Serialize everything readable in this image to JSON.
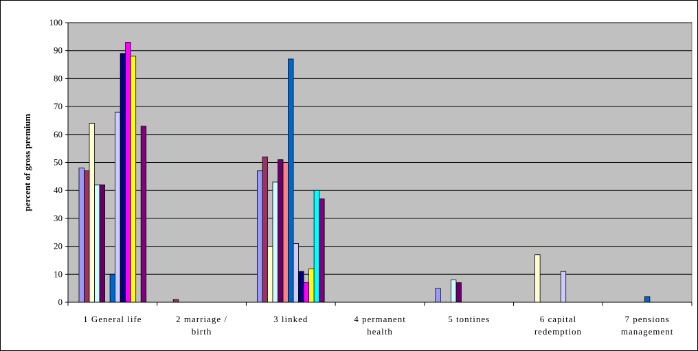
{
  "chart_data": {
    "type": "bar",
    "title": "",
    "xlabel": "",
    "ylabel": "percent of gross premium",
    "ylim": [
      0,
      100
    ],
    "yticks": [
      0,
      10,
      20,
      30,
      40,
      50,
      60,
      70,
      80,
      90,
      100
    ],
    "grid": true,
    "legend": "none",
    "plot_background": "#c0c0c0",
    "categories": [
      [
        "1 General life"
      ],
      [
        "2 marriage /",
        "birth"
      ],
      [
        "3 linked"
      ],
      [
        "4 permanent",
        "health"
      ],
      [
        "5 tontines"
      ],
      [
        "6 capital",
        "redemption"
      ],
      [
        "7 pensions",
        "management"
      ]
    ],
    "series": [
      {
        "color": "#9999ff",
        "values": [
          48,
          0,
          47,
          0,
          5,
          0,
          0
        ]
      },
      {
        "color": "#993366",
        "values": [
          47,
          1,
          52,
          0,
          0,
          0,
          0
        ]
      },
      {
        "color": "#ffffcc",
        "values": [
          64,
          0,
          20,
          0,
          0,
          17,
          0
        ]
      },
      {
        "color": "#ccffff",
        "values": [
          42,
          0,
          43,
          0,
          8,
          0,
          0
        ]
      },
      {
        "color": "#660066",
        "values": [
          42,
          0,
          51,
          0,
          7,
          0,
          0
        ]
      },
      {
        "color": "#ff8080",
        "values": [
          0,
          0,
          50,
          0,
          0,
          0,
          0
        ]
      },
      {
        "color": "#0066cc",
        "values": [
          10,
          0,
          87,
          0,
          0,
          0,
          2
        ]
      },
      {
        "color": "#ccccff",
        "values": [
          68,
          0,
          21,
          0,
          0,
          11,
          0
        ]
      },
      {
        "color": "#000080",
        "values": [
          89,
          0,
          11,
          0,
          0,
          0,
          0
        ]
      },
      {
        "color": "#ff00ff",
        "values": [
          93,
          0,
          7,
          0,
          0,
          0,
          0
        ]
      },
      {
        "color": "#ffff00",
        "values": [
          88,
          0,
          12,
          0,
          0,
          0,
          0
        ]
      },
      {
        "color": "#00ffff",
        "values": [
          0,
          0,
          40,
          0,
          0,
          0,
          0
        ]
      },
      {
        "color": "#800080",
        "values": [
          63,
          0,
          37,
          0,
          0,
          0,
          0
        ]
      }
    ]
  }
}
